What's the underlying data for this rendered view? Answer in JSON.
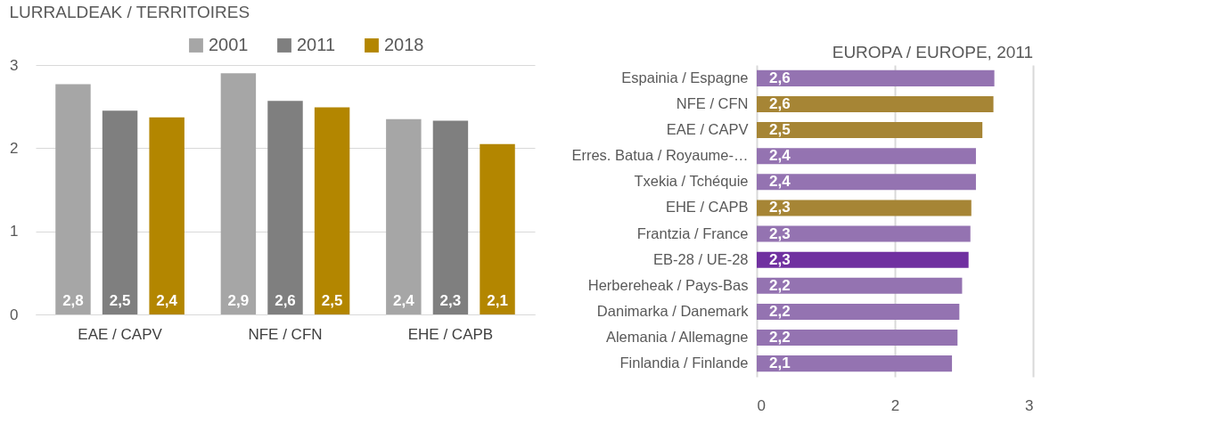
{
  "chart_data": [
    {
      "type": "bar",
      "title": "LURRALDEAK / TERRITOIRES",
      "categories": [
        "EAE / CAPV",
        "NFE / CFN",
        "EHE / CAPB"
      ],
      "series": [
        {
          "name": "2001",
          "color": "#a6a6a6",
          "values": [
            2.77,
            2.9,
            2.35
          ],
          "value_labels": [
            "2,8",
            "2,9",
            "2,4"
          ]
        },
        {
          "name": "2011",
          "color": "#7f7f7f",
          "values": [
            2.45,
            2.57,
            2.33
          ],
          "value_labels": [
            "2,5",
            "2,6",
            "2,3"
          ]
        },
        {
          "name": "2018",
          "color": "#b38600",
          "values": [
            2.37,
            2.49,
            2.05
          ],
          "value_labels": [
            "2,4",
            "2,5",
            "2,1"
          ]
        }
      ],
      "ylim": [
        0,
        3
      ],
      "yticks": [
        0,
        1,
        2,
        3
      ],
      "grid": "y",
      "legend": "top"
    },
    {
      "type": "bar",
      "title": "EUROPA / EUROPE, 2011",
      "orientation": "horizontal",
      "categories": [
        "Espainia / Espagne",
        "NFE / CFN",
        "EAE / CAPV",
        "Erres. Batua / Royaume-…",
        "Txekia / Tchéquie",
        "EHE / CAPB",
        "Frantzia / France",
        "EB-28 / UE-28",
        "Herbereheak / Pays-Bas",
        "Danimarka / Danemark",
        "Alemania / Allemagne",
        "Finlandia / Finlande"
      ],
      "values": [
        2.58,
        2.57,
        2.45,
        2.38,
        2.38,
        2.33,
        2.32,
        2.3,
        2.23,
        2.2,
        2.18,
        2.12
      ],
      "colors": [
        "#9473b1",
        "#a68535",
        "#a68535",
        "#9473b1",
        "#9473b1",
        "#a68535",
        "#9473b1",
        "#7030a0",
        "#9473b1",
        "#9473b1",
        "#9473b1",
        "#9473b1"
      ],
      "value_labels": [
        "2,6",
        "2,6",
        "2,5",
        "2,4",
        "2,4",
        "2,3",
        "2,3",
        "2,3",
        "2,2",
        "2,2",
        "2,2",
        "2,1"
      ],
      "xlim": [
        0,
        3
      ],
      "xticks": [
        0,
        {
          "value": 1.5,
          "label": "2"
        },
        3
      ],
      "grid": "x"
    }
  ]
}
